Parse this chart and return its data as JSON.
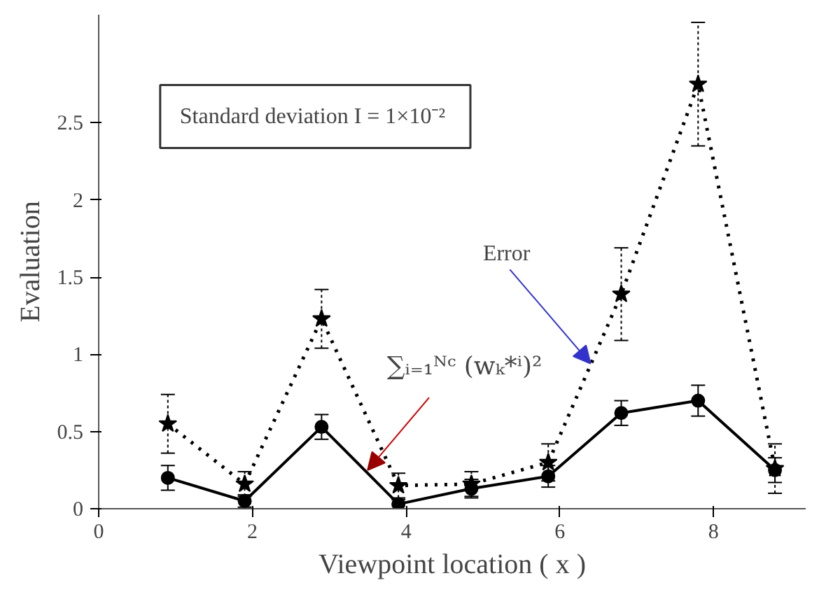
{
  "chart_data": {
    "type": "line",
    "xlabel": "Viewpoint location ( x )",
    "ylabel": "Evaluation",
    "x": [
      0.9,
      1.9,
      2.9,
      3.9,
      4.85,
      5.85,
      6.8,
      7.8,
      8.8
    ],
    "xlim": [
      0,
      9.2
    ],
    "xticks": [
      0,
      2,
      4,
      6,
      8
    ],
    "ylim": [
      0,
      3.2
    ],
    "yticks": [
      0,
      0.5,
      1,
      1.5,
      2,
      2.5
    ],
    "grid": false,
    "series": [
      {
        "color": "#000000",
        "marker": "circle",
        "line_style": "solid",
        "values": [
          0.2,
          0.05,
          0.53,
          0.03,
          0.13,
          0.21,
          0.62,
          0.7,
          0.25
        ],
        "errors": [
          0.08,
          0.04,
          0.08,
          0.03,
          0.06,
          0.07,
          0.08,
          0.1,
          0.08
        ]
      },
      {
        "color": "#000000",
        "marker": "star",
        "line_style": "dotted",
        "values": [
          0.55,
          0.16,
          1.23,
          0.15,
          0.16,
          0.3,
          1.39,
          2.75,
          0.26
        ],
        "errors": [
          0.19,
          0.08,
          0.19,
          0.08,
          0.08,
          0.12,
          0.3,
          0.4,
          0.16
        ]
      }
    ],
    "annotations": [
      "Standard deviation  I = 1×10⁻²",
      {
        "text": "Error",
        "x": 6.4,
        "y": 0.94
      },
      {
        "text": "∑ᵢ₌₁ᴺᶜ (wₖ*ⁱ)²",
        "x": 3.5,
        "y": 0.25
      }
    ]
  }
}
